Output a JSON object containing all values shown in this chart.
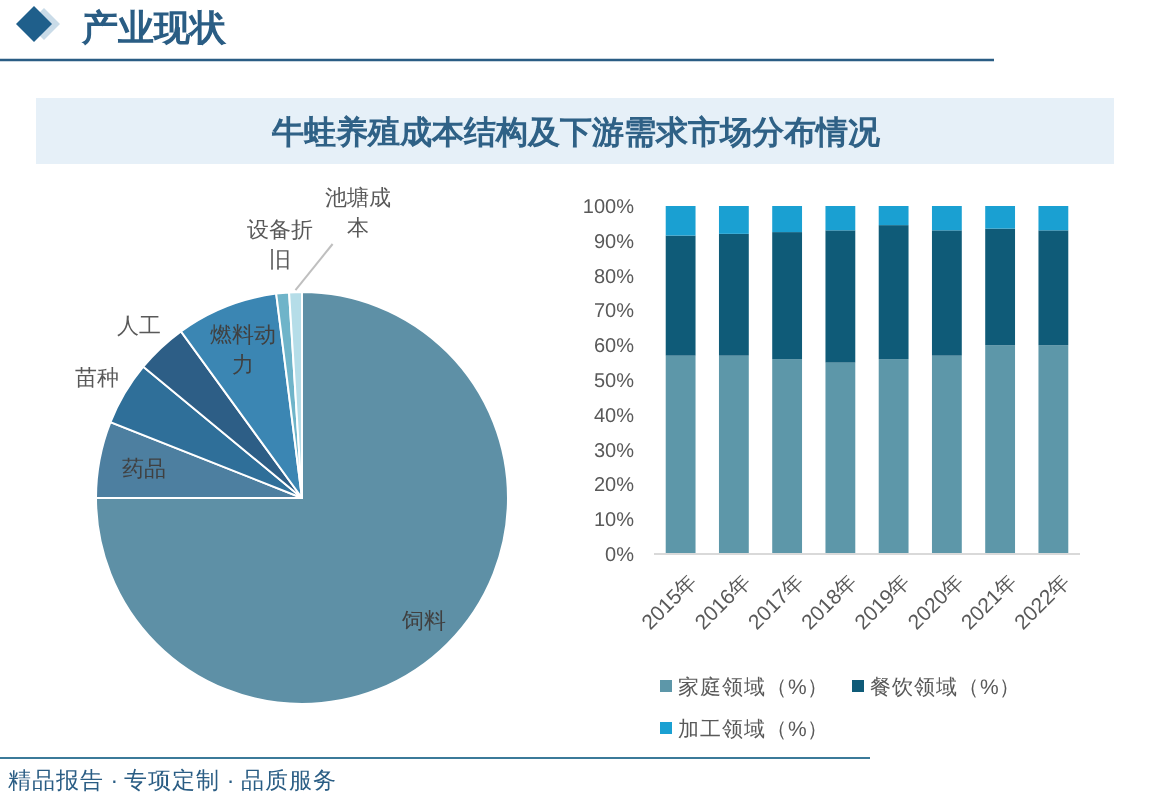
{
  "chart_data": [
    {
      "type": "other",
      "title": "产业现状",
      "subtitle": "牛蛙养殖成本结构及下游需求市场分布情况",
      "annotations": [
        "精品报告 · 专项定制 · 品质服务"
      ]
    },
    {
      "type": "pie",
      "categories": [
        "饲料",
        "药品",
        "苗种",
        "人工",
        "燃料动力",
        "设备折旧",
        "池塘成本"
      ],
      "values": [
        75,
        6,
        5,
        4,
        8,
        1,
        1
      ],
      "colors": [
        "#5e90a6",
        "#4d7fa0",
        "#2f6f99",
        "#2d5e86",
        "#3b86b3",
        "#6fb4c9",
        "#b5dde8"
      ]
    },
    {
      "type": "bar",
      "stacked": true,
      "categories": [
        "2015年",
        "2016年",
        "2017年",
        "2018年",
        "2019年",
        "2020年",
        "2021年",
        "2022年"
      ],
      "series": [
        {
          "name": "家庭领域（%）",
          "color": "#5d97a9",
          "values": [
            57,
            57,
            56,
            55,
            56,
            57,
            60,
            60
          ]
        },
        {
          "name": "餐饮领域（%）",
          "color": "#0f5b78",
          "values": [
            34.5,
            35,
            36.5,
            38,
            38.5,
            36,
            33.5,
            33
          ]
        },
        {
          "name": "加工领域（%）",
          "color": "#1aa0d2",
          "values": [
            8.5,
            8,
            7.5,
            7,
            5.5,
            7,
            6.5,
            7
          ]
        }
      ],
      "ylim": [
        0,
        100
      ],
      "yticks": [
        {
          "value": 0,
          "label": "0%"
        },
        {
          "value": 10,
          "label": "10%"
        },
        {
          "value": 20,
          "label": "20%"
        },
        {
          "value": 30,
          "label": "30%"
        },
        {
          "value": 40,
          "label": "40%"
        },
        {
          "value": 50,
          "label": "50%"
        },
        {
          "value": 60,
          "label": "60%"
        },
        {
          "value": 70,
          "label": "70%"
        },
        {
          "value": 80,
          "label": "80%"
        },
        {
          "value": 90,
          "label": "90%"
        },
        {
          "value": 100,
          "label": "100%"
        }
      ],
      "legend": "bottom"
    }
  ]
}
